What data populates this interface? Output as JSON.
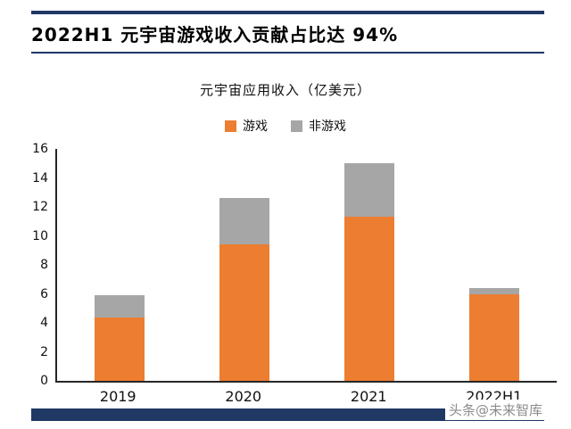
{
  "header": {
    "title": "2022H1 元宇宙游戏收入贡献占比达 94%"
  },
  "chart_data": {
    "type": "bar",
    "stacked": true,
    "title": "元宇宙应用收入（亿美元）",
    "categories": [
      "2019",
      "2020",
      "2021",
      "2022H1"
    ],
    "series": [
      {
        "name": "游戏",
        "color": "#ED7D31",
        "values": [
          4.4,
          9.4,
          11.3,
          6.0
        ]
      },
      {
        "name": "非游戏",
        "color": "#A6A6A6",
        "values": [
          1.5,
          3.2,
          3.7,
          0.4
        ]
      }
    ],
    "totals": [
      5.9,
      12.6,
      15.0,
      6.4
    ],
    "xlabel": "",
    "ylabel": "",
    "ylim": [
      0,
      16
    ],
    "ytick_step": 2,
    "legend_position": "top",
    "grid": false
  },
  "watermark": {
    "text": "头条@未来智库"
  },
  "colors": {
    "accent_navy": "#1F3864",
    "game_orange": "#ED7D31",
    "nongame_gray": "#A6A6A6",
    "axis_black": "#262626",
    "watermark_gray": "#8C8C8C"
  }
}
